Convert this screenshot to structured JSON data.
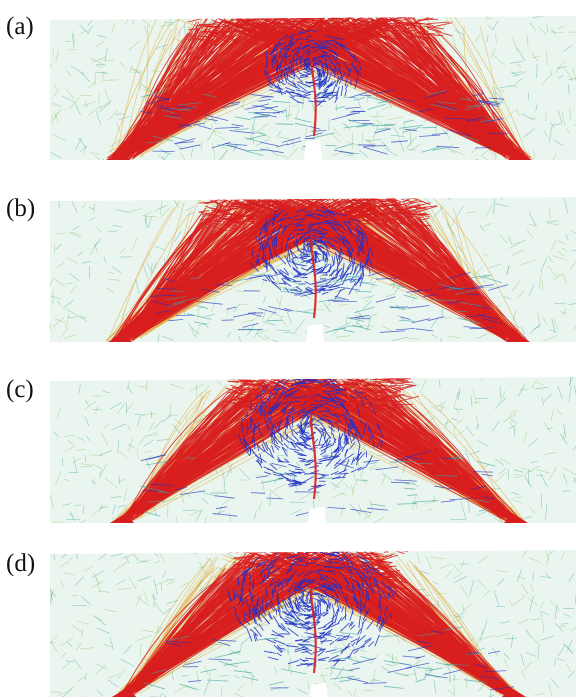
{
  "figure": {
    "panels": [
      {
        "label": "(a)",
        "stage": 0
      },
      {
        "label": "(b)",
        "stage": 1
      },
      {
        "label": "(c)",
        "stage": 2
      },
      {
        "label": "(d)",
        "stage": 3
      }
    ],
    "colors": {
      "compression": "#d81e1e",
      "tension": "#1f2fc8",
      "mid_high": "#e0a020",
      "mid": "#8cc06a",
      "low": "#3fa7a0",
      "background_field": "#bfe3cf"
    }
  }
}
